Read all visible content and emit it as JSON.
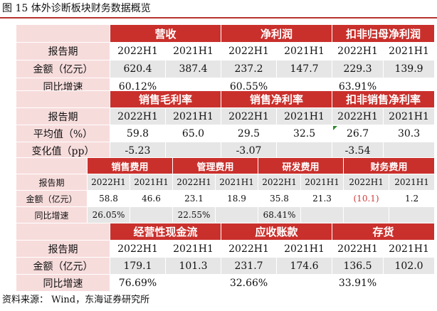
{
  "figure_title": "图 15   体外诊断板块财务数据概览",
  "source": "资料来源：  Wind，东海证券研究所",
  "table1": {
    "headers": [
      "营收",
      "净利润",
      "扣非归母净利润"
    ],
    "row_period": {
      "label": "报告期",
      "values": [
        "2022H1",
        "2021H1",
        "2022H1",
        "2021H1",
        "2022H1",
        "2021H1"
      ]
    },
    "row_amount": {
      "label": "金额（亿元）",
      "values": [
        "620.4",
        "387.4",
        "237.2",
        "147.7",
        "229.3",
        "139.9"
      ]
    },
    "row_growth": {
      "label": "同比增速",
      "values": [
        "60.12%",
        "60.55%",
        "63.91%"
      ]
    }
  },
  "table2": {
    "headers": [
      "销售毛利率",
      "销售净利率",
      "扣非销售净利率"
    ],
    "row_period": {
      "label": "报告期",
      "values": [
        "2022H1",
        "2021H1",
        "2022H1",
        "2021H1",
        "2022H1",
        "2021H1"
      ]
    },
    "row_avg": {
      "label": "平均值（%）",
      "values": [
        "59.8",
        "65.0",
        "29.5",
        "32.5",
        "26.7",
        "30.3"
      ]
    },
    "row_change": {
      "label": "变化值（pp）",
      "values": [
        "-5.23",
        "-3.07",
        "-3.54"
      ]
    }
  },
  "table3": {
    "headers": [
      "销售费用",
      "管理费用",
      "研发费用",
      "财务费用"
    ],
    "row_period": {
      "label": "报告期",
      "values": [
        "2022H1",
        "2021H1",
        "2022H1",
        "2021H1",
        "2022H1",
        "2021H1",
        "2022H1",
        "2021H1"
      ]
    },
    "row_amount": {
      "label": "金额（亿元）",
      "values": [
        "58.8",
        "46.6",
        "23.1",
        "18.9",
        "35.8",
        "21.3",
        "(10.1)",
        "1.2"
      ]
    },
    "row_growth": {
      "label": "同比增速",
      "values": [
        "26.05%",
        "22.55%",
        "68.41%"
      ]
    }
  },
  "table4": {
    "headers": [
      "经营性现金流",
      "应收账款",
      "存货"
    ],
    "row_period": {
      "label": "报告期",
      "values": [
        "2022H1",
        "2021H1",
        "2022H1",
        "2021H1",
        "2022H1",
        "2021H1"
      ]
    },
    "row_amount": {
      "label": "金额（亿元）",
      "values": [
        "179.1",
        "101.3",
        "231.7",
        "174.6",
        "136.5",
        "102.0"
      ]
    },
    "row_growth": {
      "label": "同比增速",
      "values": [
        "76.69%",
        "32.66%",
        "33.91%"
      ]
    }
  },
  "colors": {
    "header_bg": "#c9302c",
    "label_bg": "#f7dcdc",
    "alt_bg": "#e6e6e6",
    "negative_text": "#d23b3b",
    "rule": "#b8332e"
  }
}
